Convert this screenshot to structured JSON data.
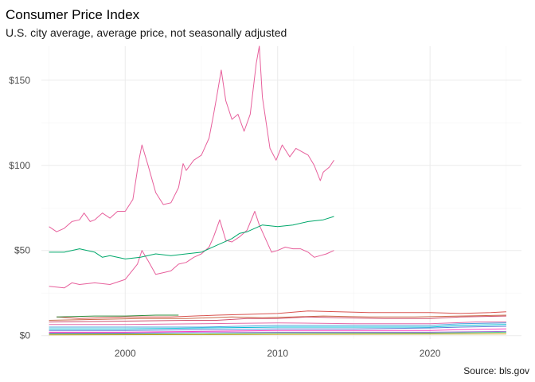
{
  "chart_data": {
    "type": "line",
    "title": "Consumer Price Index",
    "subtitle": "U.S. city average, average price, not seasonally adjusted",
    "caption": "Source: bls.gov",
    "xlabel": "",
    "ylabel": "",
    "xlim": [
      1994.5,
      2026.0
    ],
    "ylim": [
      -2,
      170
    ],
    "x_ticks": [
      2000,
      2010,
      2020
    ],
    "y_ticks": [
      0,
      50,
      100,
      150
    ],
    "y_tick_labels": [
      "$0",
      "$50",
      "$100",
      "$150"
    ],
    "grid": true,
    "legend": "none",
    "series": [
      {
        "color": "#e7609c",
        "points": [
          [
            1995.0,
            64
          ],
          [
            1995.5,
            61
          ],
          [
            1996.0,
            63
          ],
          [
            1996.5,
            67
          ],
          [
            1997.0,
            68
          ],
          [
            1997.3,
            72
          ],
          [
            1997.7,
            67
          ],
          [
            1998.0,
            68
          ],
          [
            1998.5,
            72
          ],
          [
            1999.0,
            69
          ],
          [
            1999.5,
            73
          ],
          [
            2000.0,
            73
          ],
          [
            2000.5,
            80
          ],
          [
            2000.9,
            103
          ],
          [
            2001.1,
            112
          ],
          [
            2001.5,
            100
          ],
          [
            2002.0,
            84
          ],
          [
            2002.5,
            77
          ],
          [
            2003.0,
            78
          ],
          [
            2003.5,
            87
          ],
          [
            2003.8,
            101
          ],
          [
            2004.0,
            97
          ],
          [
            2004.5,
            103
          ],
          [
            2005.0,
            106
          ],
          [
            2005.5,
            116
          ],
          [
            2005.8,
            130
          ],
          [
            2006.0,
            140
          ],
          [
            2006.3,
            156
          ],
          [
            2006.6,
            138
          ],
          [
            2007.0,
            127
          ],
          [
            2007.4,
            130
          ],
          [
            2007.8,
            120
          ],
          [
            2008.2,
            130
          ],
          [
            2008.6,
            160
          ],
          [
            2008.8,
            170
          ],
          [
            2009.0,
            140
          ],
          [
            2009.5,
            110
          ],
          [
            2009.9,
            103
          ],
          [
            2010.3,
            112
          ],
          [
            2010.8,
            105
          ],
          [
            2011.2,
            110
          ],
          [
            2011.6,
            108
          ],
          [
            2012.0,
            106
          ],
          [
            2012.4,
            100
          ],
          [
            2012.8,
            91
          ],
          [
            2013.0,
            96
          ],
          [
            2013.4,
            99
          ],
          [
            2013.7,
            103
          ]
        ]
      },
      {
        "color": "#e7609c",
        "points": [
          [
            1995.0,
            29
          ],
          [
            1996.0,
            28
          ],
          [
            1996.5,
            31
          ],
          [
            1997.0,
            30
          ],
          [
            1998.0,
            31
          ],
          [
            1999.0,
            30
          ],
          [
            2000.0,
            33
          ],
          [
            2000.8,
            42
          ],
          [
            2001.1,
            50
          ],
          [
            2001.5,
            44
          ],
          [
            2002.0,
            36
          ],
          [
            2002.5,
            37
          ],
          [
            2003.0,
            38
          ],
          [
            2003.5,
            42
          ],
          [
            2004.0,
            43
          ],
          [
            2004.5,
            46
          ],
          [
            2005.0,
            48
          ],
          [
            2005.5,
            52
          ],
          [
            2005.8,
            58
          ],
          [
            2006.2,
            68
          ],
          [
            2006.6,
            56
          ],
          [
            2007.0,
            55
          ],
          [
            2007.5,
            58
          ],
          [
            2008.0,
            62
          ],
          [
            2008.5,
            73
          ],
          [
            2008.8,
            65
          ],
          [
            2009.2,
            57
          ],
          [
            2009.6,
            49
          ],
          [
            2010.0,
            50
          ],
          [
            2010.5,
            52
          ],
          [
            2011.0,
            51
          ],
          [
            2011.5,
            51
          ],
          [
            2012.0,
            49
          ],
          [
            2012.4,
            46
          ],
          [
            2012.8,
            47
          ],
          [
            2013.2,
            48
          ],
          [
            2013.7,
            50
          ]
        ]
      },
      {
        "color": "#00a86b",
        "points": [
          [
            1995.0,
            49
          ],
          [
            1996.0,
            49
          ],
          [
            1997.0,
            51
          ],
          [
            1998.0,
            49
          ],
          [
            1998.5,
            46
          ],
          [
            1999.0,
            47
          ],
          [
            2000.0,
            45
          ],
          [
            2001.0,
            46
          ],
          [
            2002.0,
            48
          ],
          [
            2003.0,
            47
          ],
          [
            2004.0,
            48
          ],
          [
            2005.0,
            49
          ],
          [
            2006.0,
            53
          ],
          [
            2007.0,
            57
          ],
          [
            2007.5,
            60
          ],
          [
            2008.0,
            61
          ],
          [
            2008.5,
            63
          ],
          [
            2009.0,
            65
          ],
          [
            2010.0,
            64
          ],
          [
            2011.0,
            65
          ],
          [
            2012.0,
            67
          ],
          [
            2013.0,
            68
          ],
          [
            2013.7,
            70
          ]
        ]
      },
      {
        "color": "#d9534f",
        "points": [
          [
            1995.5,
            11
          ],
          [
            1997.0,
            10
          ],
          [
            2000.0,
            11
          ],
          [
            2003.0,
            11
          ],
          [
            2006.0,
            12
          ],
          [
            2008.0,
            12.5
          ],
          [
            2010.0,
            13
          ],
          [
            2012.0,
            14.5
          ],
          [
            2014.0,
            14
          ],
          [
            2016.0,
            13.5
          ],
          [
            2018.0,
            13.5
          ],
          [
            2020.0,
            13.5
          ],
          [
            2022.0,
            13
          ],
          [
            2024.0,
            13.5
          ],
          [
            2025.0,
            14
          ]
        ]
      },
      {
        "color": "#2e8b3a",
        "points": [
          [
            1995.5,
            11
          ],
          [
            1998.0,
            11.5
          ],
          [
            2000.0,
            11.5
          ],
          [
            2002.0,
            12
          ],
          [
            2003.5,
            12
          ]
        ]
      },
      {
        "color": "#c96a4a",
        "points": [
          [
            1995.0,
            9
          ],
          [
            1998.0,
            9.5
          ],
          [
            2001.0,
            10
          ],
          [
            2004.0,
            10
          ],
          [
            2007.0,
            11
          ],
          [
            2009.0,
            10.5
          ],
          [
            2011.0,
            11
          ],
          [
            2013.0,
            11.5
          ],
          [
            2016.0,
            11
          ],
          [
            2019.0,
            11
          ],
          [
            2022.0,
            11.5
          ],
          [
            2025.0,
            12
          ]
        ]
      },
      {
        "color": "#d0506e",
        "points": [
          [
            1995.0,
            8
          ],
          [
            2000.0,
            8.5
          ],
          [
            2004.0,
            9
          ],
          [
            2006.0,
            9
          ],
          [
            2008.0,
            10
          ],
          [
            2010.0,
            10
          ],
          [
            2012.0,
            11
          ],
          [
            2014.0,
            10.5
          ],
          [
            2017.0,
            10
          ],
          [
            2020.0,
            10
          ],
          [
            2022.0,
            11
          ],
          [
            2025.0,
            11.5
          ]
        ]
      },
      {
        "color": "#e46aa8",
        "points": [
          [
            1995.0,
            6.5
          ],
          [
            2000.0,
            6.5
          ],
          [
            2005.0,
            7
          ],
          [
            2010.0,
            7.5
          ],
          [
            2015.0,
            7
          ],
          [
            2020.0,
            7
          ],
          [
            2023.0,
            8
          ],
          [
            2025.0,
            8
          ]
        ]
      },
      {
        "color": "#4aa3df",
        "points": [
          [
            1995.0,
            5
          ],
          [
            2000.0,
            5
          ],
          [
            2005.0,
            5
          ],
          [
            2010.0,
            6
          ],
          [
            2015.0,
            6
          ],
          [
            2020.0,
            6
          ],
          [
            2022.0,
            7
          ],
          [
            2025.0,
            7.5
          ]
        ]
      },
      {
        "color": "#00bcd4",
        "points": [
          [
            1995.0,
            4
          ],
          [
            2000.0,
            4
          ],
          [
            2005.0,
            4.5
          ],
          [
            2010.0,
            5
          ],
          [
            2015.0,
            5
          ],
          [
            2020.0,
            5
          ],
          [
            2022.0,
            6
          ],
          [
            2025.0,
            6.5
          ]
        ]
      },
      {
        "color": "#5b7fd6",
        "points": [
          [
            1995.0,
            3
          ],
          [
            2000.0,
            3
          ],
          [
            2005.0,
            3.5
          ],
          [
            2010.0,
            4
          ],
          [
            2015.0,
            4
          ],
          [
            2020.0,
            4.5
          ],
          [
            2022.0,
            5
          ],
          [
            2025.0,
            5.5
          ]
        ]
      },
      {
        "color": "#ff3fbf",
        "points": [
          [
            1995.0,
            2
          ],
          [
            2000.0,
            2
          ],
          [
            2005.0,
            2.5
          ],
          [
            2010.0,
            3
          ],
          [
            2015.0,
            3
          ],
          [
            2020.0,
            3
          ],
          [
            2022.0,
            3.5
          ],
          [
            2025.0,
            4
          ]
        ]
      },
      {
        "color": "#a46cd9",
        "points": [
          [
            1995.0,
            1.5
          ],
          [
            2000.0,
            1.5
          ],
          [
            2005.0,
            2
          ],
          [
            2010.0,
            2
          ],
          [
            2015.0,
            2
          ],
          [
            2020.0,
            2
          ],
          [
            2025.0,
            2.5
          ]
        ]
      },
      {
        "color": "#3cb371",
        "points": [
          [
            1995.0,
            1
          ],
          [
            2000.0,
            1
          ],
          [
            2005.0,
            1
          ],
          [
            2010.0,
            1.5
          ],
          [
            2015.0,
            1.5
          ],
          [
            2020.0,
            1.5
          ],
          [
            2025.0,
            2
          ]
        ]
      },
      {
        "color": "#c8a21a",
        "points": [
          [
            1995.0,
            0.5
          ],
          [
            2005.0,
            0.6
          ],
          [
            2015.0,
            0.8
          ],
          [
            2025.0,
            1
          ]
        ]
      }
    ]
  }
}
